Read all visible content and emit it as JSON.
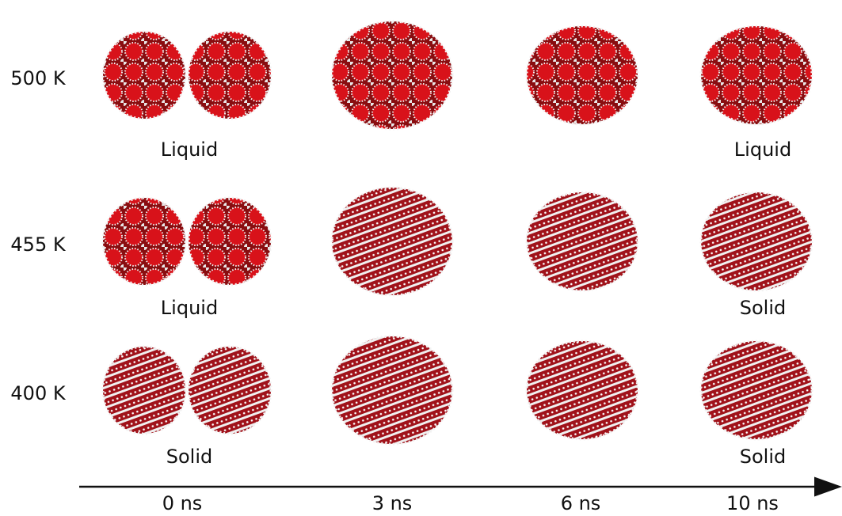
{
  "rows": [
    {
      "temperature": "500 K",
      "initial_state": "Liquid",
      "final_state": "Liquid"
    },
    {
      "temperature": "455 K",
      "initial_state": "Liquid",
      "final_state": "Solid"
    },
    {
      "temperature": "400 K",
      "initial_state": "Solid",
      "final_state": "Solid"
    }
  ],
  "times": [
    "0 ns",
    "3 ns",
    "6 ns",
    "10 ns"
  ]
}
